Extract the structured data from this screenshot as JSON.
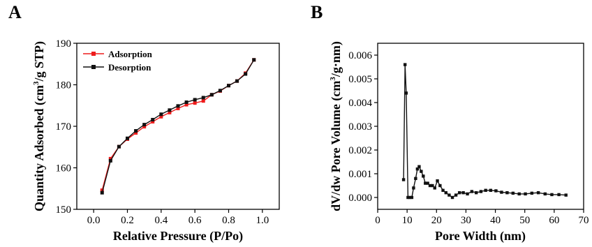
{
  "chart_data": [
    {
      "panel": "A",
      "type": "line",
      "xlabel": "Relative Pressure (P/Po)",
      "ylabel_main": "Quantity Adsorbed (cm",
      "ylabel_sup": "3",
      "ylabel_end": "/g STP)",
      "xlim": [
        -0.1,
        1.1
      ],
      "ylim": [
        150,
        190
      ],
      "xticks": [
        0.0,
        0.2,
        0.4,
        0.6,
        0.8,
        1.0
      ],
      "xtick_labels": [
        "0.0",
        "0.2",
        "0.4",
        "0.6",
        "0.8",
        "1.0"
      ],
      "yticks": [
        150,
        160,
        170,
        180,
        190
      ],
      "ytick_labels": [
        "150",
        "160",
        "170",
        "180",
        "190"
      ],
      "legend_position": "top-left",
      "series": [
        {
          "name": "Adsorption",
          "color": "#ee1c1c",
          "x": [
            0.05,
            0.1,
            0.15,
            0.2,
            0.25,
            0.3,
            0.35,
            0.4,
            0.45,
            0.5,
            0.55,
            0.6,
            0.65,
            0.7,
            0.75,
            0.8,
            0.85,
            0.9,
            0.95
          ],
          "y": [
            154.6,
            162.2,
            165.1,
            166.9,
            168.4,
            169.9,
            171.1,
            172.3,
            173.3,
            174.3,
            175.2,
            175.6,
            176.1,
            177.6,
            178.5,
            179.8,
            180.9,
            182.8,
            186.0
          ]
        },
        {
          "name": "Desorption",
          "color": "#111111",
          "x": [
            0.05,
            0.1,
            0.15,
            0.2,
            0.25,
            0.3,
            0.35,
            0.4,
            0.45,
            0.5,
            0.55,
            0.6,
            0.65,
            0.7,
            0.75,
            0.8,
            0.85,
            0.9,
            0.95
          ],
          "y": [
            154.0,
            161.7,
            165.1,
            167.1,
            168.9,
            170.4,
            171.6,
            172.9,
            173.9,
            174.9,
            175.8,
            176.4,
            176.9,
            177.6,
            178.6,
            179.8,
            180.9,
            182.6,
            186.0
          ]
        }
      ]
    },
    {
      "panel": "B",
      "type": "line",
      "xlabel": "Pore Width (nm)",
      "ylabel_main": "dV/dw Pore Volume (cm",
      "ylabel_sup": "3",
      "ylabel_end": "/g·nm)",
      "xlim": [
        0,
        70
      ],
      "ylim": [
        -0.0005,
        0.0065
      ],
      "xticks": [
        0,
        10,
        20,
        30,
        40,
        50,
        60,
        70
      ],
      "xtick_labels": [
        "0",
        "10",
        "20",
        "30",
        "40",
        "50",
        "60",
        "70"
      ],
      "yticks": [
        0.0,
        0.001,
        0.002,
        0.003,
        0.004,
        0.005,
        0.006
      ],
      "ytick_labels": [
        "0.000",
        "0.001",
        "0.002",
        "0.003",
        "0.004",
        "0.005",
        "0.006"
      ],
      "series": [
        {
          "color": "#111111",
          "x": [
            8.8,
            9.3,
            9.7,
            10.3,
            10.9,
            11.6,
            12.2,
            12.9,
            13.5,
            14.1,
            14.8,
            15.5,
            16.2,
            17.0,
            17.8,
            18.6,
            19.4,
            20.3,
            21.2,
            22.2,
            23.2,
            24.3,
            25.4,
            26.6,
            27.8,
            29.1,
            30.5,
            32.0,
            33.5,
            35.1,
            36.7,
            38.4,
            40.2,
            42.1,
            44.0,
            46.0,
            48.1,
            50.2,
            52.4,
            54.6,
            56.9,
            59.2,
            61.6,
            64.0
          ],
          "y": [
            0.00075,
            0.0056,
            0.0044,
            0.0,
            0.0,
            0.0,
            0.0004,
            0.0008,
            0.0012,
            0.0013,
            0.0011,
            0.0009,
            0.0006,
            0.0006,
            0.0005,
            0.0005,
            0.0004,
            0.0007,
            0.0005,
            0.0003,
            0.0002,
            0.0001,
            0.0,
            0.0001,
            0.0002,
            0.0002,
            0.00015,
            0.00025,
            0.0002,
            0.00025,
            0.0003,
            0.0003,
            0.00028,
            0.00022,
            0.0002,
            0.00018,
            0.00015,
            0.00015,
            0.00018,
            0.0002,
            0.00015,
            0.00012,
            0.00012,
            0.0001
          ]
        }
      ]
    }
  ]
}
